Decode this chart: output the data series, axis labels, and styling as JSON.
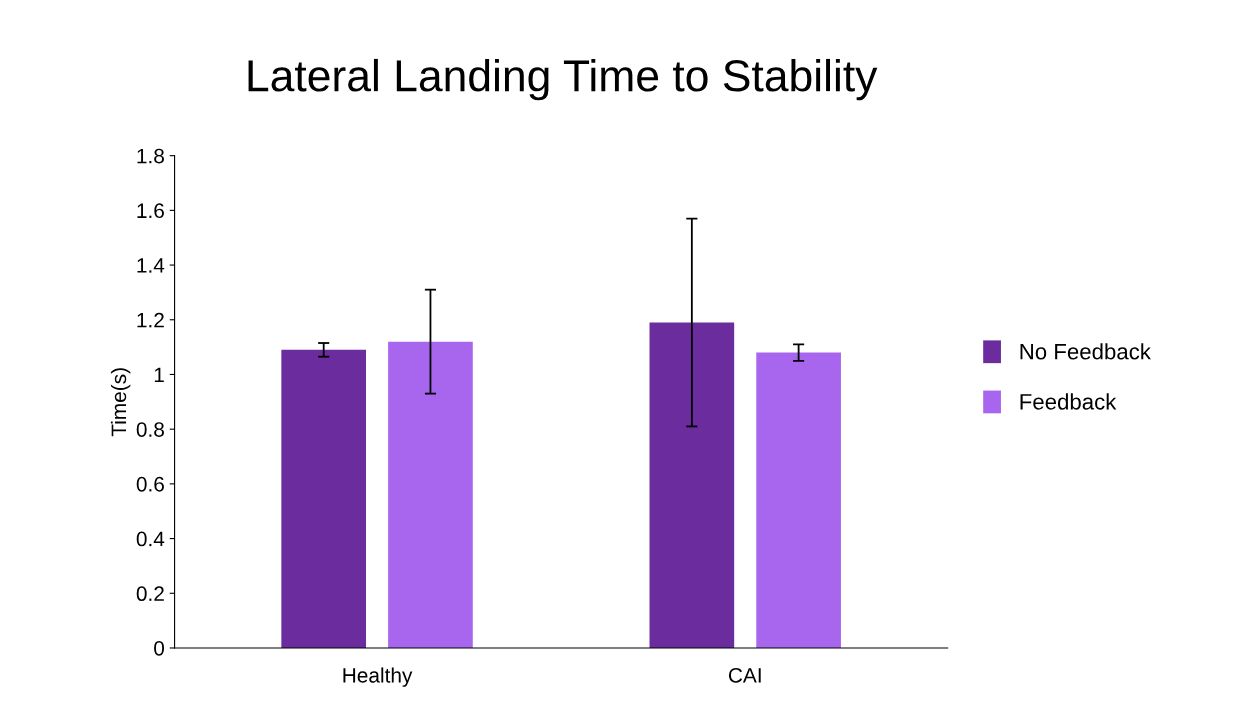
{
  "chart_data": {
    "type": "bar",
    "title": "Lateral Landing Time to Stability",
    "ylabel": "Time(s)",
    "categories": [
      "Healthy",
      "CAI"
    ],
    "series": [
      {
        "name": "No Feedback",
        "color": "#6b2d9e",
        "values": [
          1.09,
          1.19
        ],
        "errors": [
          0.025,
          0.38
        ]
      },
      {
        "name": "Feedback",
        "color": "#a866ee",
        "values": [
          1.12,
          1.08
        ],
        "errors": [
          0.19,
          0.03
        ]
      }
    ],
    "ylim": [
      0,
      1.8
    ],
    "yticks": [
      0,
      0.2,
      0.4,
      0.6,
      0.8,
      1,
      1.2,
      1.4,
      1.6,
      1.8
    ],
    "grid": false,
    "legend": "right"
  }
}
